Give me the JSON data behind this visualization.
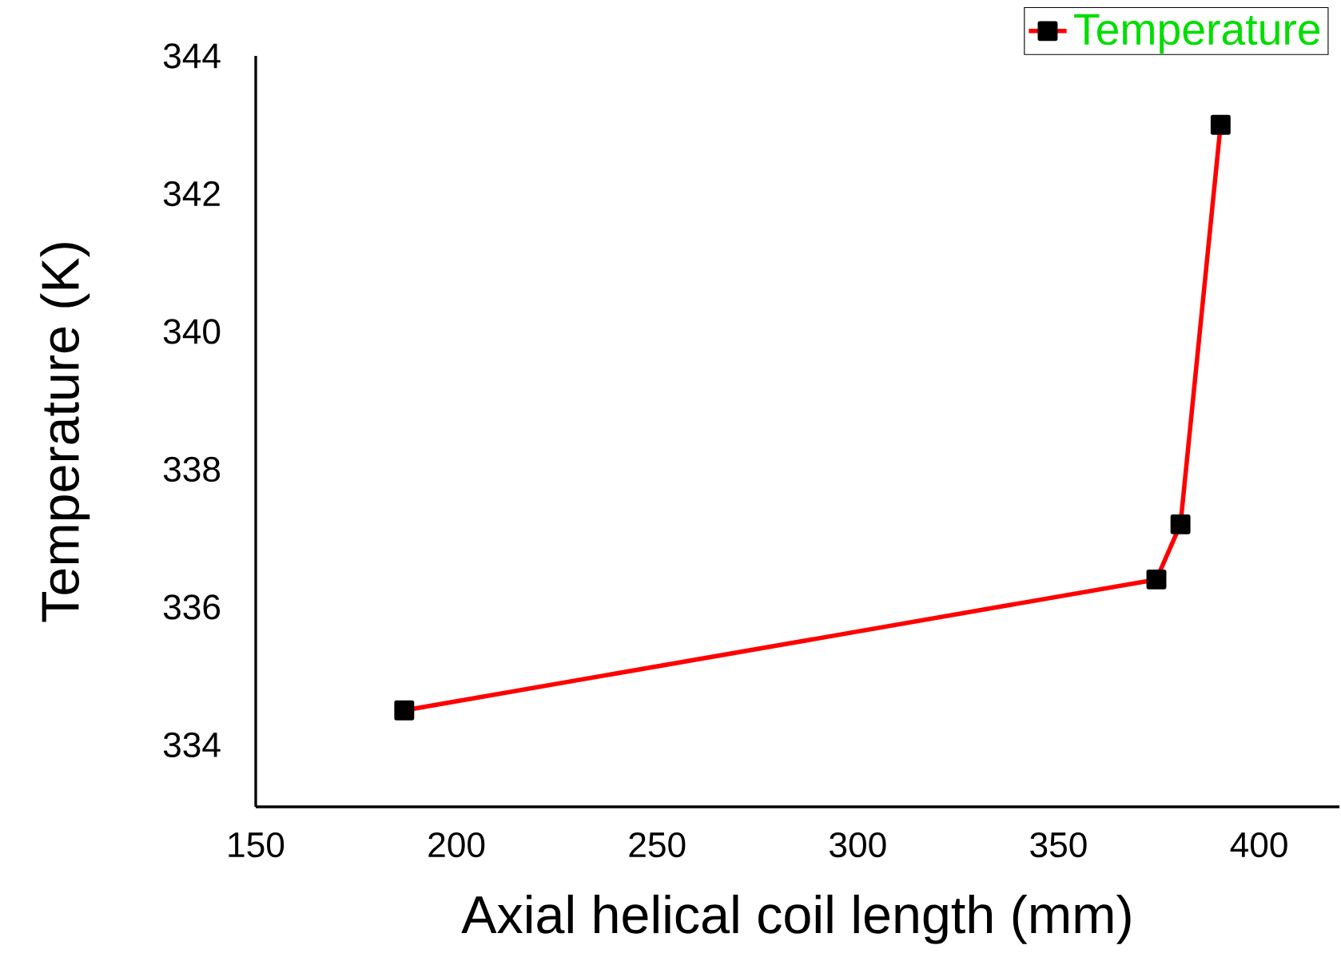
{
  "chart_data": {
    "type": "line",
    "xlabel": "Axial helical coil length (mm)",
    "ylabel": "Temperature (K)",
    "x": [
      187,
      374.4,
      380.4,
      390.4
    ],
    "series": [
      {
        "name": "Temperature",
        "color": "#ff0000",
        "values": [
          334.5,
          336.4,
          337.2,
          343.0
        ]
      }
    ],
    "xlim": [
      150,
      420
    ],
    "xticks": [
      150,
      200,
      250,
      300,
      350,
      400
    ],
    "ylim": [
      333.1,
      344
    ],
    "yticks": [
      334,
      336,
      338,
      340,
      342,
      344
    ],
    "marker": "square",
    "line_style": "solid",
    "legend": "top right",
    "grid": false
  }
}
